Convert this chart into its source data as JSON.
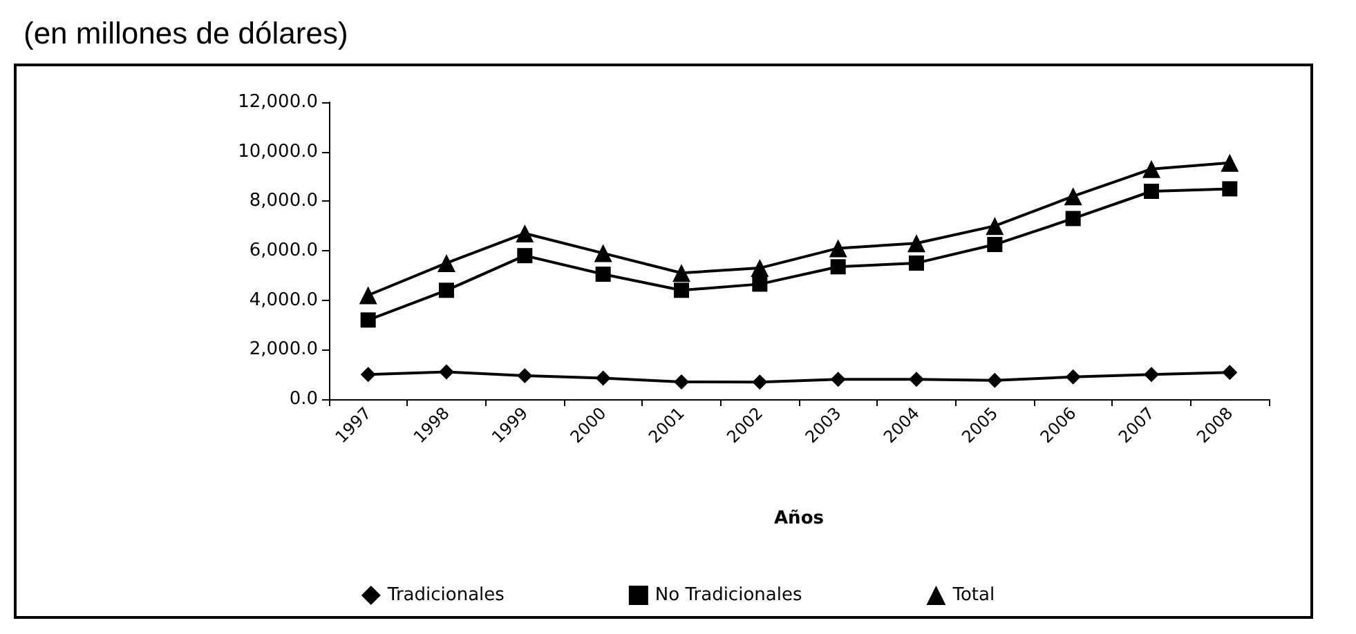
{
  "chart_data": {
    "type": "line",
    "title": "(en millones de dólares)",
    "xlabel": "Años",
    "categories": [
      "1997",
      "1998",
      "1999",
      "2000",
      "2001",
      "2002",
      "2003",
      "2004",
      "2005",
      "2006",
      "2007",
      "2008"
    ],
    "series": [
      {
        "name": "Tradicionales",
        "color": "#000000",
        "marker": "diamond",
        "values": [
          1000,
          1100,
          950,
          850,
          700,
          690,
          800,
          800,
          760,
          900,
          1000,
          1080
        ]
      },
      {
        "name": "No Tradicionales",
        "color": "#000000",
        "marker": "square",
        "values": [
          3200,
          4400,
          5800,
          5050,
          4400,
          4650,
          5350,
          5500,
          6250,
          7300,
          8400,
          8500
        ]
      },
      {
        "name": "Total",
        "color": "#000000",
        "marker": "triangle",
        "values": [
          4200,
          5500,
          6700,
          5900,
          5100,
          5300,
          6100,
          6300,
          7000,
          8200,
          9300,
          9550
        ]
      }
    ],
    "ylim": [
      0,
      12000
    ],
    "yticks": [
      {
        "value": 0,
        "label": "0.0"
      },
      {
        "value": 2000,
        "label": "2,000.0"
      },
      {
        "value": 4000,
        "label": "4,000.0"
      },
      {
        "value": 6000,
        "label": "6,000.0"
      },
      {
        "value": 8000,
        "label": "8,000.0"
      },
      {
        "value": 10000,
        "label": "10,000.0"
      },
      {
        "value": 12000,
        "label": "12,000.0"
      }
    ],
    "grid": false,
    "legend": "bottom",
    "line_style": "solid"
  }
}
